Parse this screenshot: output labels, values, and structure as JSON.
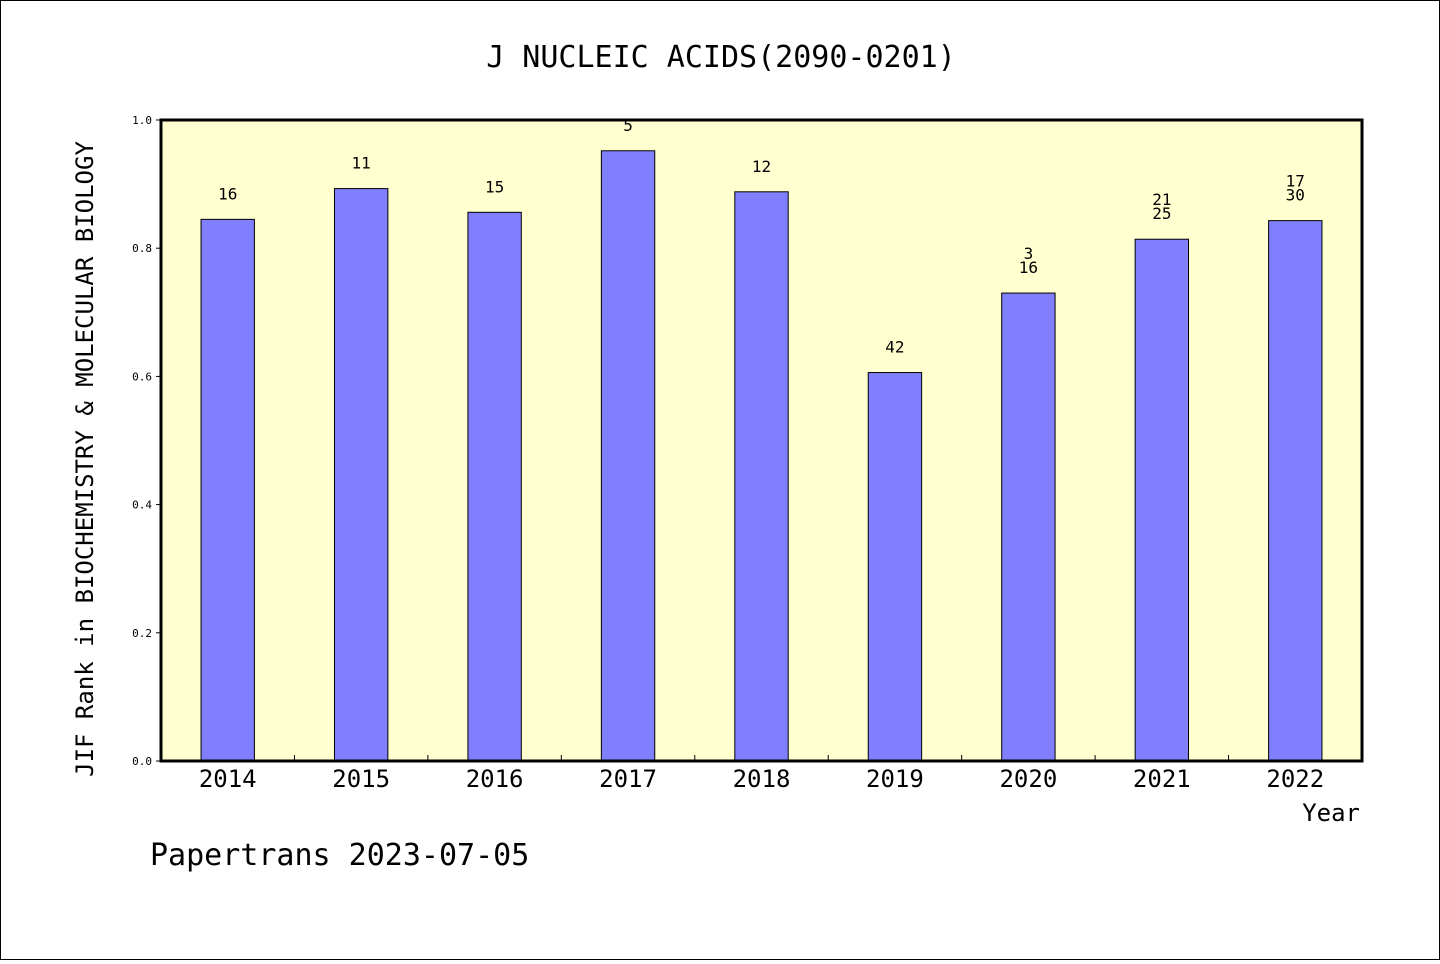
{
  "chart_data": {
    "type": "bar",
    "title": "J NUCLEIC ACIDS(2090-0201)",
    "xlabel": "Year",
    "ylabel": "JIF Rank in BIOCHEMISTRY & MOLECULAR BIOLOGY",
    "ylim": [
      0,
      1.0
    ],
    "yticks": [
      "0.0",
      "0.2",
      "0.4",
      "0.6",
      "0.8",
      "1.0"
    ],
    "grid": false,
    "categories": [
      "2014",
      "2015",
      "2016",
      "2017",
      "2018",
      "2019",
      "2020",
      "2021",
      "2022"
    ],
    "values": [
      0.845,
      0.893,
      0.856,
      0.952,
      0.888,
      0.606,
      0.73,
      0.814,
      0.843
    ],
    "bar_labels": [
      [
        "16"
      ],
      [
        "11"
      ],
      [
        "15"
      ],
      [
        "5"
      ],
      [
        "12"
      ],
      [
        "42"
      ],
      [
        "3",
        "16"
      ],
      [
        "21",
        "25"
      ],
      [
        "17",
        "30"
      ]
    ],
    "colors": {
      "bar": "#8080ff",
      "plot_background": "#ffffd0",
      "axis": "#000000"
    }
  },
  "footer": {
    "credit": "Papertrans 2023-07-05"
  }
}
